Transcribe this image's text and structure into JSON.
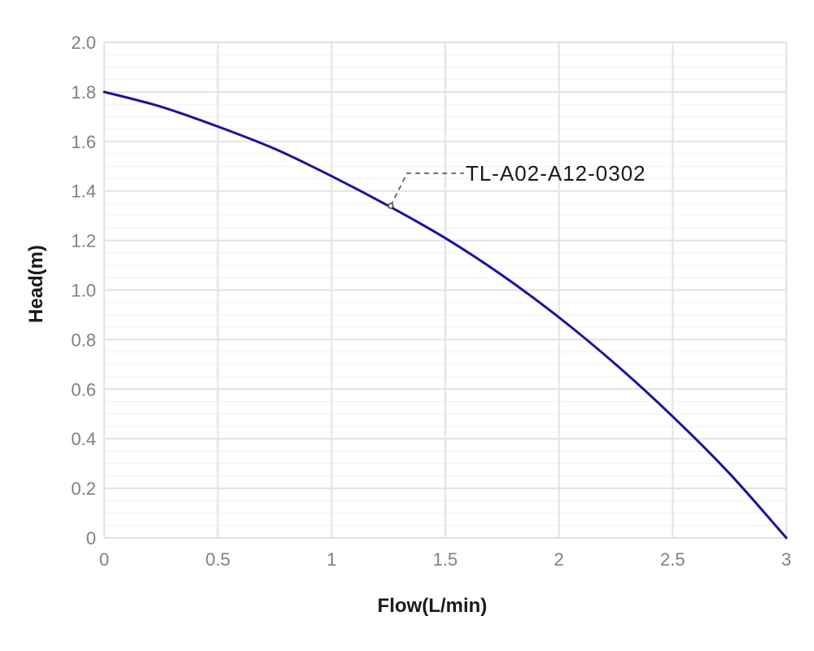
{
  "chart_data": {
    "type": "line",
    "title": "",
    "xlabel": "Flow(L/min)",
    "ylabel": "Head(m)",
    "xlim": [
      0,
      3
    ],
    "ylim": [
      0,
      2
    ],
    "x_ticks": [
      "0",
      "0.5",
      "1",
      "1.5",
      "2",
      "2.5",
      "3"
    ],
    "x_tick_values": [
      0,
      0.5,
      1,
      1.5,
      2,
      2.5,
      3
    ],
    "y_ticks": [
      "0",
      "0.2",
      "0.4",
      "0.6",
      "0.8",
      "1.0",
      "1.2",
      "1.4",
      "1.6",
      "1.8",
      "2.0"
    ],
    "y_tick_values": [
      0,
      0.2,
      0.4,
      0.6,
      0.8,
      1.0,
      1.2,
      1.4,
      1.6,
      1.8,
      2.0
    ],
    "grid": true,
    "minor_y_step": 0.05,
    "series": [
      {
        "name": "TL-A02-A12-0302",
        "color": "#1a12a0",
        "x": [
          0,
          0.25,
          0.5,
          0.75,
          1.0,
          1.25,
          1.5,
          1.75,
          2.0,
          2.25,
          2.5,
          2.75,
          3.0
        ],
        "y": [
          1.8,
          1.74,
          1.66,
          1.57,
          1.46,
          1.34,
          1.21,
          1.06,
          0.89,
          0.7,
          0.49,
          0.26,
          0.0
        ]
      }
    ],
    "annotation": {
      "text": "TL-A02-A12-0302",
      "x": 1.26,
      "y": 1.34
    }
  }
}
